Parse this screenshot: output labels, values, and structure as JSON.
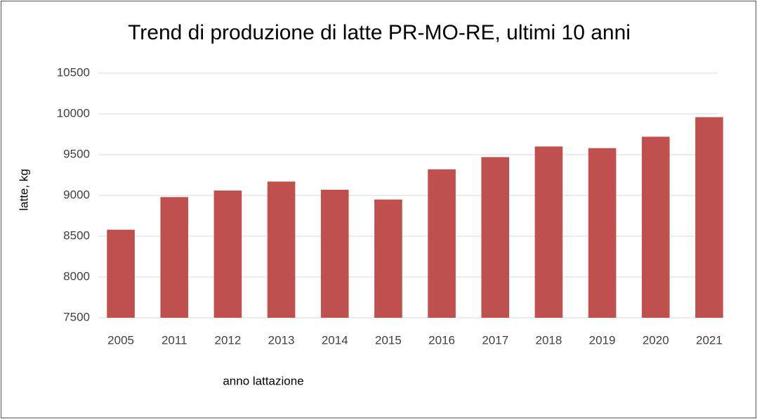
{
  "chart_data": {
    "type": "bar",
    "title": "Trend di produzione di latte PR-MO-RE, ultimi 10 anni",
    "x_label": "anno lattazione",
    "y_label": "latte, kg",
    "categories": [
      "2005",
      "2011",
      "2012",
      "2013",
      "2014",
      "2015",
      "2016",
      "2017",
      "2018",
      "2019",
      "2020",
      "2021"
    ],
    "values": [
      8580,
      8980,
      9060,
      9170,
      9070,
      8950,
      9320,
      9470,
      9600,
      9580,
      9720,
      9960
    ],
    "color": "#c0504d",
    "ylim": [
      7500,
      10500
    ],
    "yticks": [
      7500,
      8000,
      8500,
      9000,
      9500,
      10000,
      10500
    ],
    "grid": true
  }
}
